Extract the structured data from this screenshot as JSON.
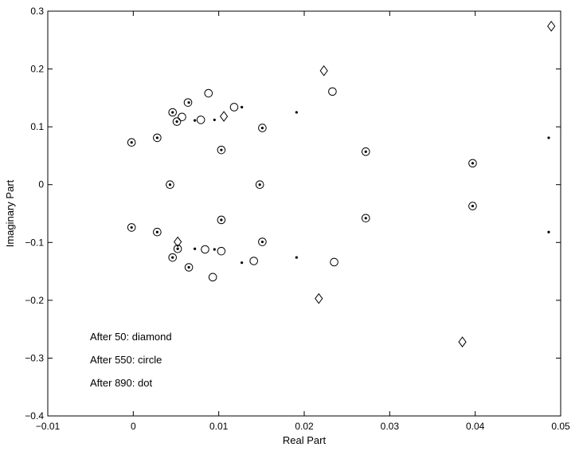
{
  "chart_data": {
    "type": "scatter",
    "xlabel": "Real Part",
    "ylabel": "Imaginary Part",
    "xlim": [
      -0.01,
      0.05
    ],
    "ylim": [
      -0.4,
      0.3
    ],
    "xticks": [
      "−0.01",
      "0",
      "0.01",
      "0.02",
      "0.03",
      "0.04",
      "0.05"
    ],
    "xtick_values": [
      -0.01,
      0,
      0.01,
      0.02,
      0.03,
      0.04,
      0.05
    ],
    "yticks": [
      "0.3",
      "0.2",
      "0.1",
      "0",
      "−0.1",
      "−0.2",
      "−0.3",
      "−0.4"
    ],
    "ytick_values": [
      0.3,
      0.2,
      0.1,
      0,
      -0.1,
      -0.2,
      -0.3,
      -0.4
    ],
    "grid": false,
    "annotations": [
      "After 50:  diamond",
      "After 550:  circle",
      "After 890:  dot"
    ],
    "series": [
      {
        "marker": "diamond",
        "points": [
          [
            0.0489,
            0.274
          ],
          [
            0.0223,
            0.197
          ],
          [
            0.0106,
            0.118
          ],
          [
            0.0052,
            -0.099
          ],
          [
            0.0217,
            -0.197
          ],
          [
            0.0385,
            -0.272
          ]
        ]
      },
      {
        "marker": "circle",
        "points": [
          [
            -0.0002,
            0.073
          ],
          [
            0.0028,
            0.081
          ],
          [
            0.0046,
            0.125
          ],
          [
            0.0051,
            0.109
          ],
          [
            0.0057,
            0.117
          ],
          [
            0.0064,
            0.142
          ],
          [
            0.0079,
            0.112
          ],
          [
            0.0088,
            0.158
          ],
          [
            0.0103,
            0.06
          ],
          [
            0.0118,
            0.134
          ],
          [
            0.0151,
            0.098
          ],
          [
            0.0233,
            0.161
          ],
          [
            0.0272,
            0.057
          ],
          [
            0.0397,
            0.037
          ],
          [
            0.0043,
            0.0
          ],
          [
            0.0148,
            0.0
          ],
          [
            -0.0002,
            -0.074
          ],
          [
            0.0028,
            -0.082
          ],
          [
            0.0046,
            -0.126
          ],
          [
            0.0052,
            -0.111
          ],
          [
            0.0065,
            -0.143
          ],
          [
            0.0084,
            -0.112
          ],
          [
            0.0093,
            -0.16
          ],
          [
            0.0103,
            -0.061
          ],
          [
            0.0103,
            -0.115
          ],
          [
            0.0141,
            -0.132
          ],
          [
            0.0151,
            -0.099
          ],
          [
            0.0235,
            -0.134
          ],
          [
            0.0272,
            -0.058
          ],
          [
            0.0397,
            -0.037
          ]
        ]
      },
      {
        "marker": "dot",
        "points": [
          [
            -0.0002,
            0.073
          ],
          [
            0.0028,
            0.081
          ],
          [
            0.0046,
            0.125
          ],
          [
            0.0051,
            0.109
          ],
          [
            0.0065,
            0.142
          ],
          [
            0.0072,
            0.111
          ],
          [
            0.0095,
            0.112
          ],
          [
            0.0103,
            0.06
          ],
          [
            0.0127,
            0.134
          ],
          [
            0.0151,
            0.098
          ],
          [
            0.0191,
            0.125
          ],
          [
            0.0272,
            0.057
          ],
          [
            0.0397,
            0.037
          ],
          [
            0.0486,
            0.081
          ],
          [
            0.0043,
            0.0
          ],
          [
            0.0148,
            0.0
          ],
          [
            -0.0002,
            -0.074
          ],
          [
            0.0028,
            -0.082
          ],
          [
            0.0046,
            -0.126
          ],
          [
            0.0052,
            -0.111
          ],
          [
            0.0065,
            -0.143
          ],
          [
            0.0072,
            -0.111
          ],
          [
            0.0095,
            -0.112
          ],
          [
            0.0103,
            -0.061
          ],
          [
            0.0127,
            -0.135
          ],
          [
            0.0151,
            -0.099
          ],
          [
            0.0191,
            -0.126
          ],
          [
            0.0272,
            -0.058
          ],
          [
            0.0397,
            -0.037
          ],
          [
            0.0486,
            -0.082
          ]
        ]
      }
    ]
  }
}
